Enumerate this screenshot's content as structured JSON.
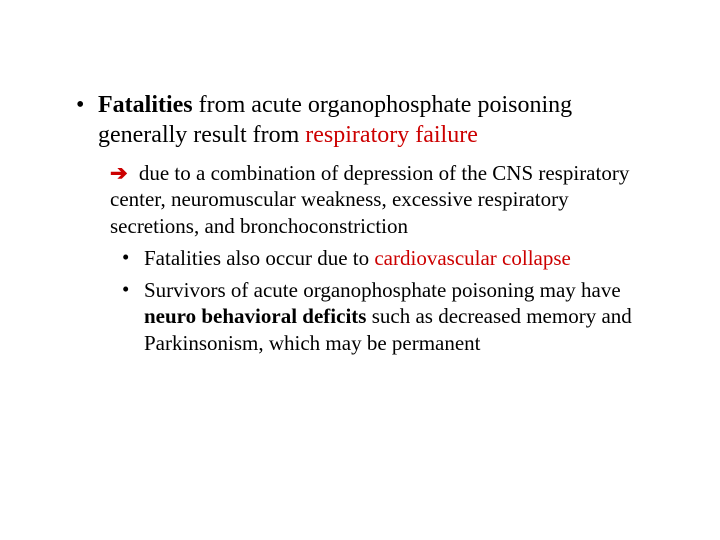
{
  "slide": {
    "bullet1": {
      "marker": "•",
      "seg1_bold": "Fatalities",
      "seg2": " from acute organophosphate poisoning generally result from ",
      "seg3_red": "respiratory failure"
    },
    "arrow": "➔",
    "sub1": " due to a combination of depression of the CNS respiratory center, neuromuscular weakness, excessive respiratory secretions, and bronchoconstriction",
    "bullet2": {
      "marker": "•",
      "seg1": "Fatalities also occur due to ",
      "seg2_red": "cardiovascular collapse"
    },
    "bullet3": {
      "marker": "•",
      "seg1": "Survivors of acute organophosphate poisoning may have ",
      "seg2_bold": "neuro behavioral deficits ",
      "seg3": "such as decreased memory and Parkinsonism, which may be permanent"
    },
    "colors": {
      "text": "#000000",
      "red": "#cc0000",
      "background": "#ffffff"
    },
    "fontsize_main": 24,
    "fontsize_sub": 21
  }
}
